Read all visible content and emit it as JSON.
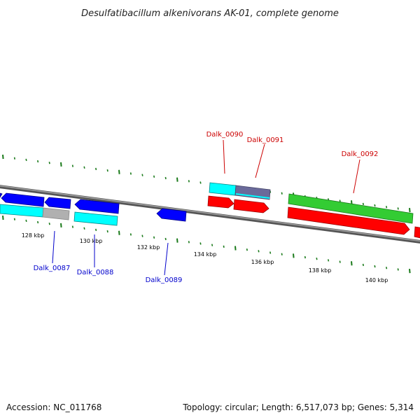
{
  "title": "Desulfatibacillum alkenivorans AK-01, complete genome",
  "footer": {
    "accession": "Accession: NC_011768",
    "summary": "Topology: circular; Length: 6,517,073 bp; Genes: 5,314"
  },
  "axis_labels": [
    "128 kbp",
    "130 kbp",
    "132 kbp",
    "134 kbp",
    "136 kbp",
    "138 kbp",
    "140 kbp"
  ],
  "gene_labels": {
    "reverse": [
      "Dalk_0087",
      "Dalk_0088",
      "Dalk_0089"
    ],
    "forward": [
      "Dalk_0090",
      "Dalk_0091",
      "Dalk_0092"
    ]
  },
  "colors": {
    "forward_label": "#cc0000",
    "reverse_label": "#0000cc",
    "cds_forward": "#ff0000",
    "cds_reverse": "#0000ff",
    "cog_cyan": "#00ffff",
    "cog_green": "#33cc33",
    "cog_gray": "#b0b0b0",
    "cog_slate": "#6a6a9a",
    "backbone": "#808080",
    "gc_tick": "#1a7a1a"
  },
  "icons": [
    "forward-gene-arrow-icon",
    "reverse-gene-arrow-icon"
  ]
}
